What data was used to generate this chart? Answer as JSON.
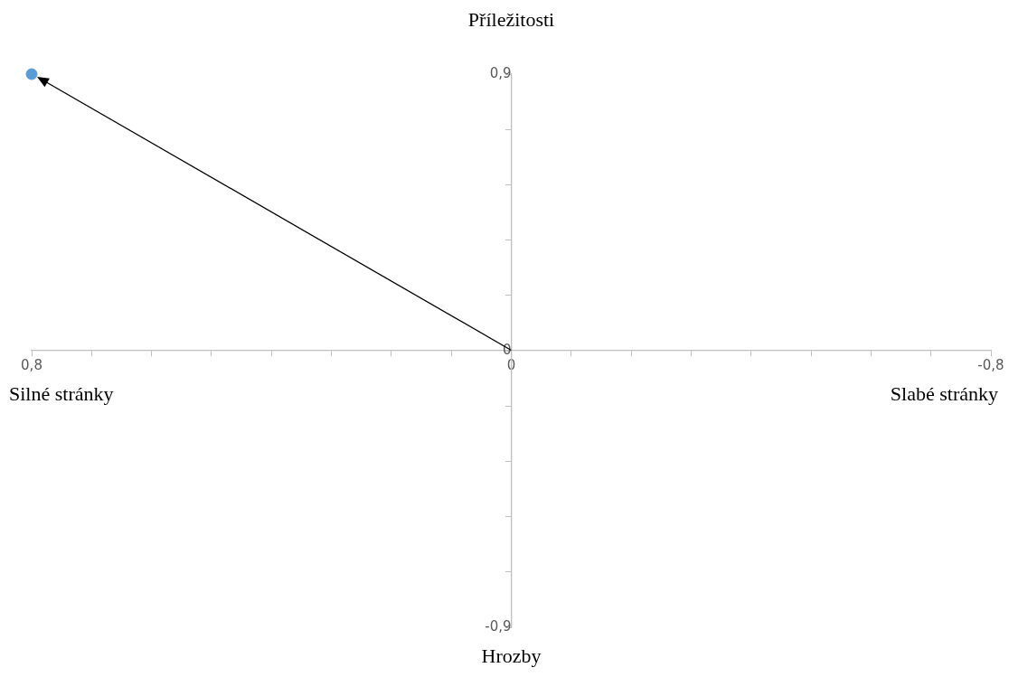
{
  "chart_data": {
    "type": "scatter",
    "xlim": [
      0.8,
      -0.8
    ],
    "xticks": [
      {
        "value": 0.8,
        "label": "0,8"
      },
      {
        "value": 0.7,
        "label": null
      },
      {
        "value": 0.6,
        "label": null
      },
      {
        "value": 0.5,
        "label": null
      },
      {
        "value": 0.4,
        "label": null
      },
      {
        "value": 0.3,
        "label": null
      },
      {
        "value": 0.2,
        "label": null
      },
      {
        "value": 0.1,
        "label": null
      },
      {
        "value": 0,
        "label": "0"
      },
      {
        "value": -0.1,
        "label": null
      },
      {
        "value": -0.2,
        "label": null
      },
      {
        "value": -0.3,
        "label": null
      },
      {
        "value": -0.4,
        "label": null
      },
      {
        "value": -0.5,
        "label": null
      },
      {
        "value": -0.6,
        "label": null
      },
      {
        "value": -0.7,
        "label": null
      },
      {
        "value": -0.8,
        "label": "-0,8"
      }
    ],
    "ylim": [
      -0.9,
      0.9
    ],
    "yticks": [
      {
        "value": -0.9,
        "label": "-0,9"
      },
      {
        "value": -0.72,
        "label": null
      },
      {
        "value": -0.54,
        "label": null
      },
      {
        "value": -0.36,
        "label": null
      },
      {
        "value": -0.18,
        "label": null
      },
      {
        "value": 0,
        "label": "0"
      },
      {
        "value": 0.18,
        "label": null
      },
      {
        "value": 0.36,
        "label": null
      },
      {
        "value": 0.54,
        "label": null
      },
      {
        "value": 0.72,
        "label": null
      },
      {
        "value": 0.9,
        "label": "0,9"
      }
    ],
    "grid": false,
    "legend": false,
    "marker": "circle",
    "series": [
      {
        "color": "#5b9bd5",
        "x": [
          0.8
        ],
        "values": [
          0.9
        ]
      }
    ],
    "annotations": [
      "Příležitosti",
      "Silné stránky",
      "Slabé stránky",
      "Hrozby"
    ]
  }
}
